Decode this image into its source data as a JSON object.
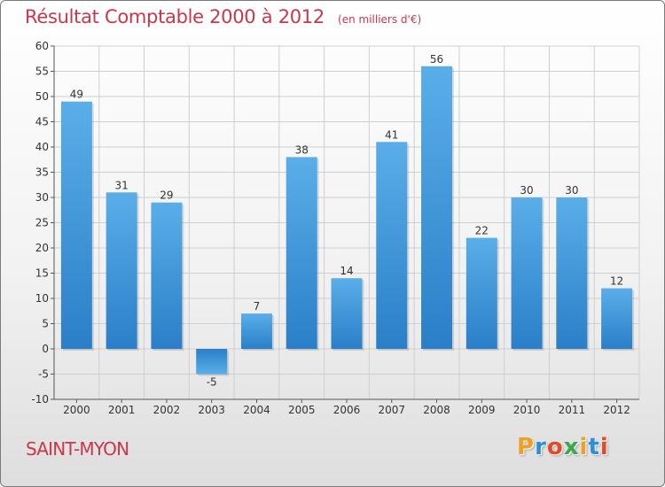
{
  "chart_data": {
    "type": "bar",
    "title": "Résultat Comptable 2000 à 2012",
    "subtitle": "(en milliers d'€)",
    "categories": [
      "2000",
      "2001",
      "2002",
      "2003",
      "2004",
      "2005",
      "2006",
      "2007",
      "2008",
      "2009",
      "2010",
      "2011",
      "2012"
    ],
    "values": [
      49,
      31,
      29,
      -5,
      7,
      38,
      14,
      41,
      56,
      22,
      30,
      30,
      12
    ],
    "ylim": [
      -10,
      60
    ],
    "yticks": [
      -10,
      -5,
      0,
      5,
      10,
      15,
      20,
      25,
      30,
      35,
      40,
      45,
      50,
      55,
      60
    ],
    "grid": true,
    "xlabel": "",
    "ylabel": ""
  },
  "footer": {
    "commune": "SAINT-MYON",
    "logo_letters": [
      "P",
      "r",
      "o",
      "x",
      "i",
      "t",
      "i"
    ]
  },
  "colors": {
    "bar_top": "#5aaee8",
    "bar_bottom": "#2a7fc8",
    "title": "#c8384d",
    "grid": "#cfcfcf"
  }
}
